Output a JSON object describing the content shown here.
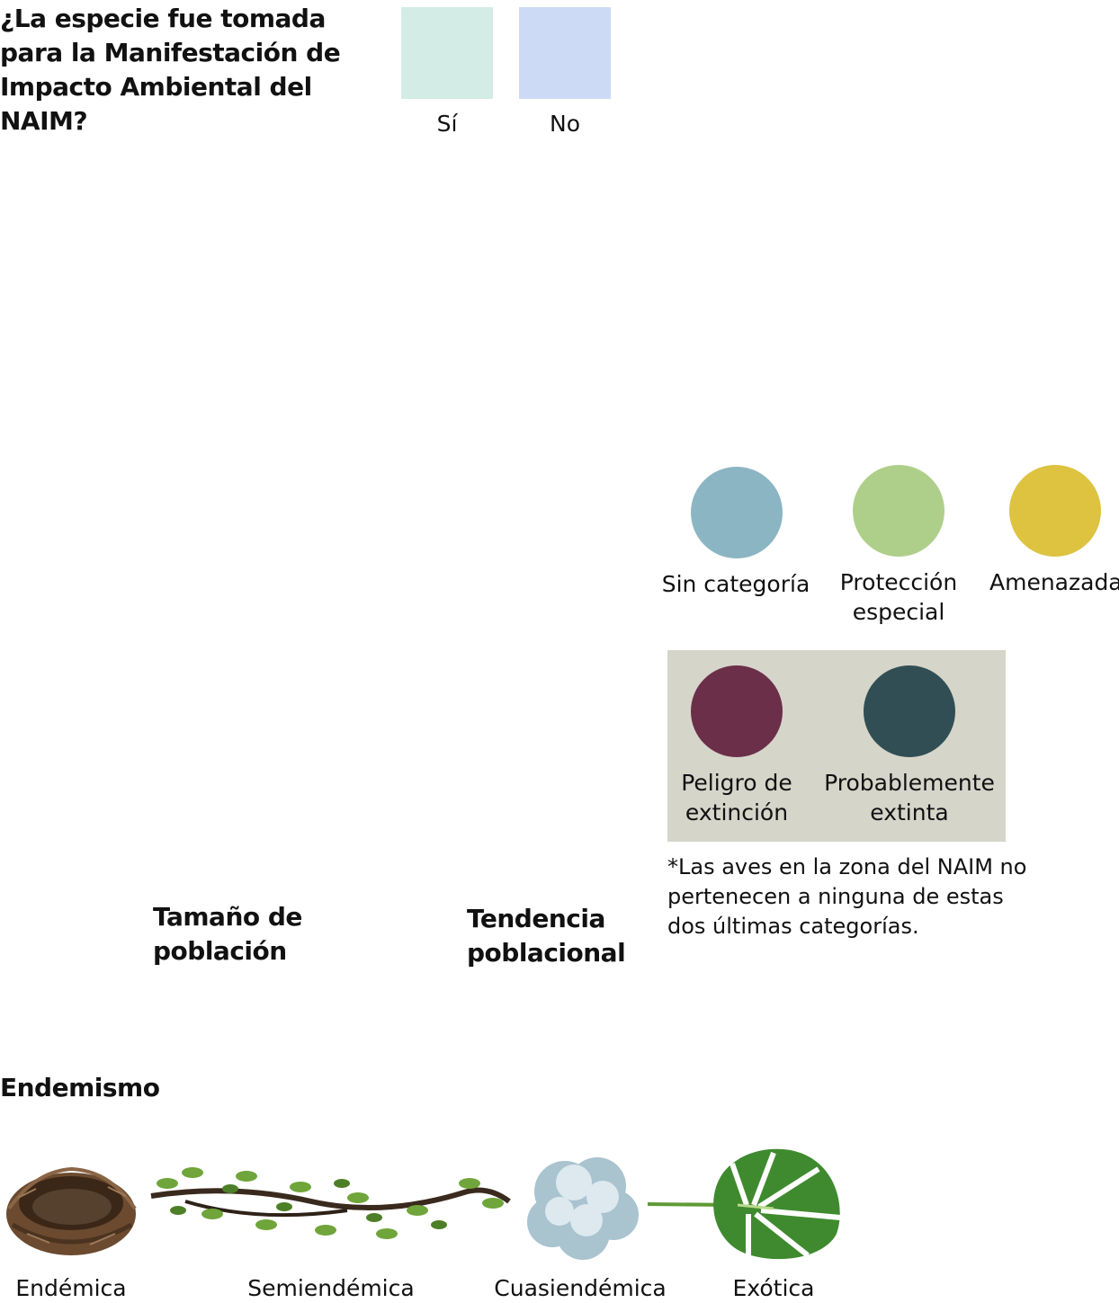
{
  "question": {
    "title": "¿La especie fue tomada para la Manifestación de Impacto Ambiental del NAIM?",
    "options": [
      {
        "label": "Sí",
        "color": "#d3ece6"
      },
      {
        "label": "No",
        "color": "#ccdaf5"
      }
    ]
  },
  "categories": {
    "items": [
      {
        "label": "Sin categoría",
        "color": "#8bb5c3"
      },
      {
        "label": "Protección especial",
        "color": "#aecf8a"
      },
      {
        "label": "Amenazada",
        "color": "#ddc340"
      }
    ],
    "boxed_items": [
      {
        "label": "Peligro de extinción",
        "color": "#6b2f49"
      },
      {
        "label": "Probablemente extinta",
        "color": "#324e55"
      }
    ],
    "box_color": "#d6d5ca",
    "note": "*Las aves en la zona del NAIM no pertenecen a ninguna de estas dos últimas categorías."
  },
  "headings": {
    "population_size": "Tamaño de población",
    "population_trend": "Tendencia poblacional",
    "endemism": "Endemismo"
  },
  "endemism": {
    "items": [
      {
        "label": "Endémica",
        "icon": "nest-icon"
      },
      {
        "label": "Semiendémica",
        "icon": "branch-icon"
      },
      {
        "label": "Cuasiendémica",
        "icon": "cloud-icon"
      },
      {
        "label": "Exótica",
        "icon": "monstera-leaf-icon"
      }
    ]
  }
}
